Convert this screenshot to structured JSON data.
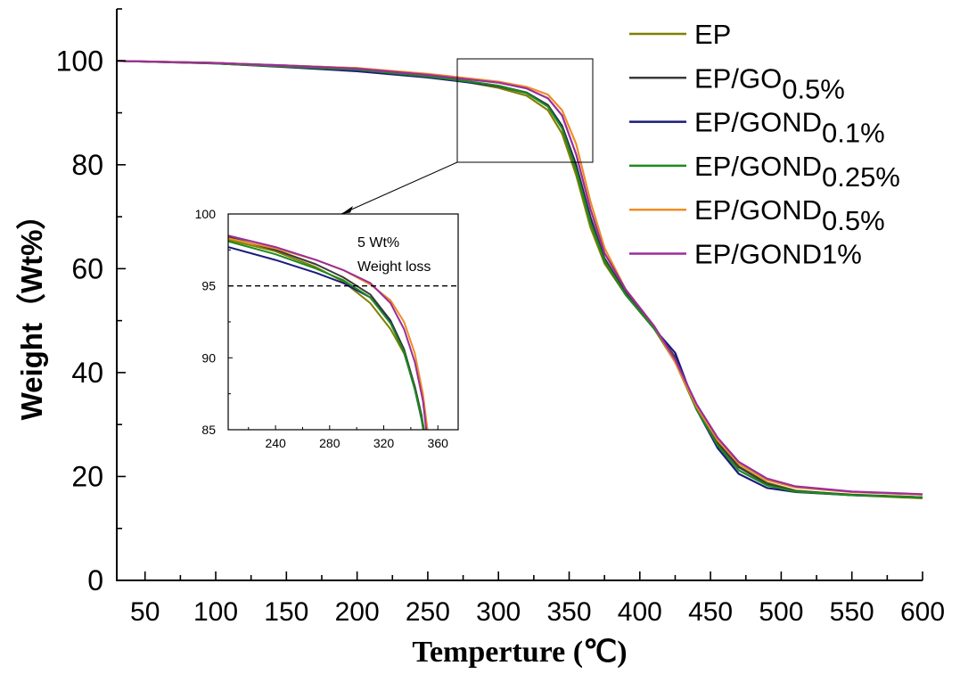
{
  "chart_data": [
    {
      "type": "line",
      "xlabel": "Temperture (℃)",
      "ylabel": "Weight（Wt%）",
      "xlim": [
        30,
        600
      ],
      "ylim": [
        0,
        110
      ],
      "x_ticks": [
        50,
        100,
        150,
        200,
        250,
        300,
        350,
        400,
        450,
        500,
        550,
        600
      ],
      "y_ticks": [
        0,
        20,
        40,
        60,
        80,
        100
      ],
      "legend_position": "top-right",
      "grid": false,
      "series": [
        {
          "name": "EP",
          "sub": "",
          "color": "#808000",
          "points": [
            [
              30,
              100
            ],
            [
              100,
              99.6
            ],
            [
              150,
              99.1
            ],
            [
              200,
              98.6
            ],
            [
              250,
              97.2
            ],
            [
              280,
              95.8
            ],
            [
              300,
              94.8
            ],
            [
              320,
              93.3
            ],
            [
              335,
              90.5
            ],
            [
              345,
              86
            ],
            [
              355,
              78
            ],
            [
              365,
              68
            ],
            [
              375,
              61
            ],
            [
              390,
              55
            ],
            [
              410,
              48.5
            ],
            [
              425,
              42
            ],
            [
              440,
              33
            ],
            [
              455,
              26.5
            ],
            [
              470,
              22
            ],
            [
              490,
              18.8
            ],
            [
              510,
              17.3
            ],
            [
              550,
              16.4
            ],
            [
              600,
              15.8
            ]
          ]
        },
        {
          "name": "EP/GO",
          "sub": "0.5%",
          "color": "#3a3a3a",
          "points": [
            [
              30,
              100
            ],
            [
              100,
              99.6
            ],
            [
              150,
              99
            ],
            [
              200,
              98.2
            ],
            [
              250,
              97
            ],
            [
              280,
              96
            ],
            [
              300,
              95.2
            ],
            [
              320,
              93.9
            ],
            [
              335,
              91.5
            ],
            [
              345,
              87.5
            ],
            [
              355,
              80
            ],
            [
              365,
              70
            ],
            [
              375,
              62
            ],
            [
              390,
              55.5
            ],
            [
              410,
              48.5
            ],
            [
              425,
              43
            ],
            [
              440,
              33.5
            ],
            [
              455,
              26.5
            ],
            [
              470,
              21.8
            ],
            [
              490,
              18.6
            ],
            [
              510,
              17.2
            ],
            [
              550,
              16.5
            ],
            [
              600,
              16
            ]
          ]
        },
        {
          "name": "EP/GOND",
          "sub": "0.1%",
          "color": "#1a1a7e",
          "points": [
            [
              30,
              100
            ],
            [
              100,
              99.5
            ],
            [
              150,
              98.8
            ],
            [
              200,
              98
            ],
            [
              250,
              96.8
            ],
            [
              280,
              95.8
            ],
            [
              300,
              95.1
            ],
            [
              320,
              93.8
            ],
            [
              335,
              91.3
            ],
            [
              345,
              87.3
            ],
            [
              355,
              79.5
            ],
            [
              365,
              69.5
            ],
            [
              375,
              61.5
            ],
            [
              390,
              55
            ],
            [
              410,
              48.5
            ],
            [
              425,
              43.8
            ],
            [
              440,
              33
            ],
            [
              455,
              25.5
            ],
            [
              470,
              20.5
            ],
            [
              490,
              17.8
            ],
            [
              510,
              17
            ],
            [
              550,
              16.4
            ],
            [
              600,
              16
            ]
          ]
        },
        {
          "name": "EP/GOND",
          "sub": "0.25%",
          "color": "#1e8a1e",
          "points": [
            [
              30,
              100
            ],
            [
              100,
              99.5
            ],
            [
              150,
              98.9
            ],
            [
              200,
              98.3
            ],
            [
              250,
              97
            ],
            [
              280,
              96
            ],
            [
              300,
              95.2
            ],
            [
              320,
              93.8
            ],
            [
              335,
              91.2
            ],
            [
              345,
              87
            ],
            [
              355,
              79
            ],
            [
              365,
              69
            ],
            [
              375,
              61.5
            ],
            [
              390,
              55
            ],
            [
              410,
              48.5
            ],
            [
              425,
              42.5
            ],
            [
              440,
              33
            ],
            [
              455,
              26
            ],
            [
              470,
              21.2
            ],
            [
              490,
              18.3
            ],
            [
              510,
              17.1
            ],
            [
              550,
              16.4
            ],
            [
              600,
              16
            ]
          ]
        },
        {
          "name": "EP/GOND",
          "sub": "0.5%",
          "color": "#f08c28",
          "points": [
            [
              30,
              100
            ],
            [
              100,
              99.6
            ],
            [
              150,
              99.1
            ],
            [
              200,
              98.6
            ],
            [
              250,
              97.5
            ],
            [
              280,
              96.6
            ],
            [
              300,
              96
            ],
            [
              320,
              95
            ],
            [
              335,
              93.5
            ],
            [
              345,
              90.5
            ],
            [
              355,
              84
            ],
            [
              365,
              73
            ],
            [
              375,
              64
            ],
            [
              390,
              56
            ],
            [
              410,
              49
            ],
            [
              425,
              42
            ],
            [
              440,
              33.5
            ],
            [
              455,
              27
            ],
            [
              470,
              22.5
            ],
            [
              490,
              19.3
            ],
            [
              510,
              17.9
            ],
            [
              550,
              17
            ],
            [
              600,
              16.5
            ]
          ]
        },
        {
          "name": "EP/GOND1%",
          "sub": "",
          "color": "#9a2e9a",
          "points": [
            [
              30,
              100
            ],
            [
              100,
              99.6
            ],
            [
              150,
              99.1
            ],
            [
              200,
              98.5
            ],
            [
              250,
              97.3
            ],
            [
              280,
              96.4
            ],
            [
              300,
              95.8
            ],
            [
              320,
              94.7
            ],
            [
              335,
              92.8
            ],
            [
              345,
              89.5
            ],
            [
              355,
              82
            ],
            [
              365,
              71.5
            ],
            [
              375,
              63
            ],
            [
              390,
              56
            ],
            [
              410,
              49
            ],
            [
              425,
              42.5
            ],
            [
              440,
              34
            ],
            [
              455,
              27.5
            ],
            [
              470,
              22.8
            ],
            [
              490,
              19.6
            ],
            [
              510,
              18.1
            ],
            [
              550,
              17.1
            ],
            [
              600,
              16.6
            ]
          ]
        }
      ]
    },
    {
      "type": "line",
      "role": "inset",
      "xlim": [
        205,
        375
      ],
      "ylim": [
        85,
        100
      ],
      "x_ticks": [
        240,
        280,
        320,
        360
      ],
      "y_ticks": [
        85,
        90,
        95,
        100
      ],
      "reference_line_y": 95,
      "annotation_lines": [
        "5 Wt%",
        "Weight loss"
      ],
      "series": [
        {
          "name": "EP",
          "color": "#808000",
          "points": [
            [
              205,
              98.2
            ],
            [
              240,
              97.4
            ],
            [
              270,
              96.3
            ],
            [
              290,
              95.3
            ],
            [
              310,
              93.8
            ],
            [
              325,
              92
            ],
            [
              335,
              90.3
            ],
            [
              343,
              88
            ],
            [
              348,
              85.9
            ],
            [
              351,
              84.5
            ]
          ]
        },
        {
          "name": "EP/GO0.5%",
          "color": "#3a3a3a",
          "points": [
            [
              205,
              98.4
            ],
            [
              240,
              97.5
            ],
            [
              270,
              96.5
            ],
            [
              290,
              95.6
            ],
            [
              310,
              94.4
            ],
            [
              325,
              92.6
            ],
            [
              335,
              90.6
            ],
            [
              343,
              88
            ],
            [
              348,
              86
            ],
            [
              350,
              84.5
            ]
          ]
        },
        {
          "name": "EP/GOND0.1%",
          "color": "#1a1a7e",
          "points": [
            [
              205,
              97.7
            ],
            [
              240,
              96.8
            ],
            [
              270,
              95.9
            ],
            [
              290,
              95.2
            ],
            [
              310,
              94.2
            ],
            [
              325,
              92.5
            ],
            [
              335,
              90.4
            ],
            [
              343,
              87.8
            ],
            [
              348,
              85.7
            ],
            [
              350,
              84.5
            ]
          ]
        },
        {
          "name": "EP/GOND0.25%",
          "color": "#1e8a1e",
          "points": [
            [
              205,
              98.1
            ],
            [
              240,
              97.2
            ],
            [
              270,
              96.2
            ],
            [
              290,
              95.4
            ],
            [
              310,
              94.2
            ],
            [
              325,
              92.4
            ],
            [
              335,
              90.4
            ],
            [
              343,
              87.8
            ],
            [
              348,
              85.8
            ],
            [
              350,
              84.5
            ]
          ]
        },
        {
          "name": "EP/GOND0.5%",
          "color": "#f08c28",
          "points": [
            [
              205,
              98.3
            ],
            [
              240,
              97.6
            ],
            [
              270,
              96.8
            ],
            [
              290,
              96.1
            ],
            [
              310,
              95.1
            ],
            [
              325,
              94
            ],
            [
              335,
              92.5
            ],
            [
              343,
              90.3
            ],
            [
              349,
              87.5
            ],
            [
              353,
              84.5
            ]
          ]
        },
        {
          "name": "EP/GOND1%",
          "color": "#9a2e9a",
          "points": [
            [
              205,
              98.5
            ],
            [
              240,
              97.7
            ],
            [
              270,
              96.8
            ],
            [
              290,
              96.1
            ],
            [
              310,
              95.2
            ],
            [
              325,
              93.8
            ],
            [
              335,
              92
            ],
            [
              343,
              89.7
            ],
            [
              349,
              87
            ],
            [
              352,
              84.5
            ]
          ]
        }
      ]
    }
  ]
}
